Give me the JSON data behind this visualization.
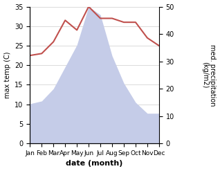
{
  "months": [
    "Jan",
    "Feb",
    "Mar",
    "Apr",
    "May",
    "Jun",
    "Jul",
    "Aug",
    "Sep",
    "Oct",
    "Nov",
    "Dec"
  ],
  "temperature": [
    22.5,
    23.0,
    26.0,
    31.5,
    29.0,
    35.0,
    32.0,
    32.0,
    31.0,
    31.0,
    27.0,
    25.0
  ],
  "precipitation": [
    14.5,
    15.5,
    20.0,
    28.0,
    36.0,
    50.0,
    47.0,
    32.0,
    22.0,
    15.0,
    11.0,
    11.0
  ],
  "temp_color": "#c0504d",
  "precip_fill_color": "#c5cce8",
  "precip_fill_edge": "#aab4d4",
  "ylabel_left": "max temp (C)",
  "ylabel_right": "med. precipitation\n(kg/m2)",
  "xlabel": "date (month)",
  "ylim_left": [
    0,
    35
  ],
  "ylim_right": [
    0,
    50
  ],
  "yticks_left": [
    0,
    5,
    10,
    15,
    20,
    25,
    30,
    35
  ],
  "yticks_right": [
    0,
    10,
    20,
    30,
    40,
    50
  ],
  "grid_color": "#cccccc",
  "bg_color": "#ffffff"
}
